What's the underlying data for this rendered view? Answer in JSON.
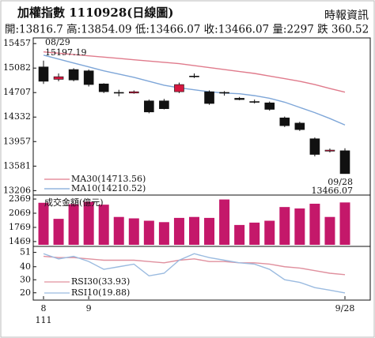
{
  "chart_data": [
    {
      "type": "candlestick",
      "title": "加權指數 1110928(日線圖)",
      "source": "時報資訊",
      "subtitle": "開:13816.7 高:13854.09 低:13466.07 收:13466.07 量:2297 跌 360.52",
      "open": [
        15100,
        14910,
        15060,
        15040,
        14840,
        14710,
        14700,
        14580,
        14580,
        14720,
        14960,
        14720,
        14710,
        14620,
        14570,
        14550,
        14320,
        14240,
        14000,
        13810,
        13816.7
      ],
      "high": [
        15197.19,
        15000,
        15080,
        15060,
        14850,
        14750,
        14740,
        14600,
        14610,
        14860,
        15000,
        14740,
        14730,
        14640,
        14600,
        14570,
        14340,
        14260,
        14020,
        13850,
        13854.09
      ],
      "low": [
        14840,
        14880,
        14880,
        14800,
        14700,
        14650,
        14690,
        14390,
        14450,
        14700,
        14930,
        14520,
        14660,
        14590,
        14540,
        14430,
        14180,
        14120,
        13730,
        13790,
        13466.07
      ],
      "close": [
        14880,
        14950,
        14900,
        14830,
        14720,
        14700,
        14720,
        14410,
        14460,
        14830,
        14950,
        14540,
        14700,
        14600,
        14560,
        14450,
        14200,
        14140,
        13760,
        13826.59,
        13466.07
      ],
      "up_color": "#d5173f",
      "down_color": "#111111",
      "series": [
        {
          "name": "MA30(14713.56)",
          "color": "#e07b8c",
          "values": [
            15330,
            15310,
            15290,
            15270,
            15250,
            15230,
            15210,
            15190,
            15170,
            15150,
            15120,
            15090,
            15060,
            15030,
            15000,
            14960,
            14920,
            14880,
            14830,
            14770,
            14713.56
          ]
        },
        {
          "name": "MA10(14210.52)",
          "color": "#7ea6d8",
          "values": [
            15280,
            15220,
            15160,
            15100,
            15040,
            14990,
            14940,
            14880,
            14820,
            14780,
            14750,
            14720,
            14700,
            14690,
            14660,
            14620,
            14560,
            14480,
            14400,
            14310,
            14210.52
          ]
        }
      ],
      "high_label": {
        "date": "08/29",
        "value": "15197.19"
      },
      "low_label": {
        "date": "09/28",
        "value": "13466.07"
      },
      "ylim": [
        13150,
        15520
      ],
      "yticks": [
        13206,
        13581,
        13957,
        14332,
        14707,
        15082,
        15457
      ]
    },
    {
      "type": "bar",
      "title": "成交金額(億元)",
      "values": [
        2290,
        1950,
        2260,
        2310,
        2250,
        1990,
        1960,
        1910,
        1880,
        1970,
        1990,
        1970,
        2360,
        1820,
        1870,
        1910,
        2200,
        2170,
        2270,
        1990,
        2297
      ],
      "color": "#c4186a",
      "ylim": [
        1400,
        2420
      ],
      "yticks": [
        1469,
        1769,
        2069,
        2369
      ]
    },
    {
      "type": "line",
      "categories": [
        "8",
        null,
        null,
        "9",
        null,
        null,
        null,
        null,
        null,
        null,
        null,
        null,
        null,
        null,
        null,
        null,
        null,
        null,
        null,
        null,
        "9/28"
      ],
      "x_sublabel": "111",
      "series": [
        {
          "name": "RSI30(33.93)",
          "color": "#e0909e",
          "values": [
            48,
            47,
            47,
            46,
            45,
            45,
            45,
            44,
            43,
            45,
            46,
            44,
            44,
            43,
            43,
            42,
            40,
            39,
            37,
            35,
            33.93
          ]
        },
        {
          "name": "RSI10(19.88)",
          "color": "#9bbbe0",
          "values": [
            50,
            46,
            48,
            44,
            38,
            40,
            42,
            33,
            35,
            45,
            50,
            47,
            45,
            43,
            42,
            38,
            30,
            28,
            24,
            22,
            19.88
          ]
        }
      ],
      "ylim": [
        15,
        55
      ],
      "yticks": [
        20,
        30,
        40,
        51
      ]
    }
  ]
}
